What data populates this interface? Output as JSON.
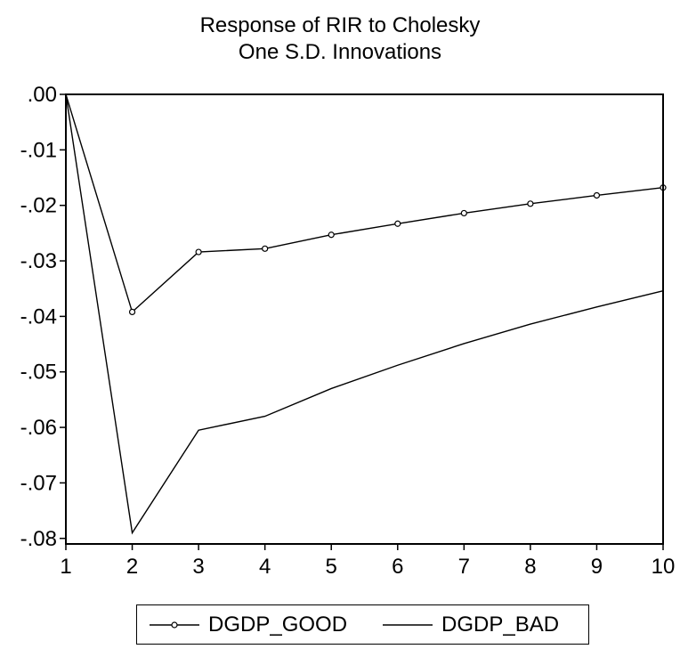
{
  "chart_data": {
    "type": "line",
    "title": "Response of RIR to Cholesky",
    "subtitle": "One S.D. Innovations",
    "x": [
      1,
      2,
      3,
      4,
      5,
      6,
      7,
      8,
      9,
      10
    ],
    "x_tick_labels": [
      "1",
      "2",
      "3",
      "4",
      "5",
      "6",
      "7",
      "8",
      "9",
      "10"
    ],
    "y_tick_labels": [
      ".00",
      "-.01",
      "-.02",
      "-.03",
      "-.04",
      "-.05",
      "-.06",
      "-.07",
      "-.08"
    ],
    "y_ticks": [
      0.0,
      -0.01,
      -0.02,
      -0.03,
      -0.04,
      -0.05,
      -0.06,
      -0.07,
      -0.08
    ],
    "xlim": [
      1,
      10
    ],
    "ylim": [
      -0.081,
      0.0
    ],
    "grid": false,
    "legend_position": "bottom",
    "series": [
      {
        "name": "DGDP_GOOD",
        "marker": "circle",
        "values": [
          0.0,
          -0.0392,
          -0.0284,
          -0.0278,
          -0.0253,
          -0.0233,
          -0.0214,
          -0.0197,
          -0.0182,
          -0.0168
        ]
      },
      {
        "name": "DGDP_BAD",
        "marker": "none",
        "values": [
          0.0,
          -0.079,
          -0.0605,
          -0.058,
          -0.053,
          -0.0488,
          -0.0449,
          -0.0414,
          -0.0383,
          -0.0354
        ]
      }
    ]
  }
}
